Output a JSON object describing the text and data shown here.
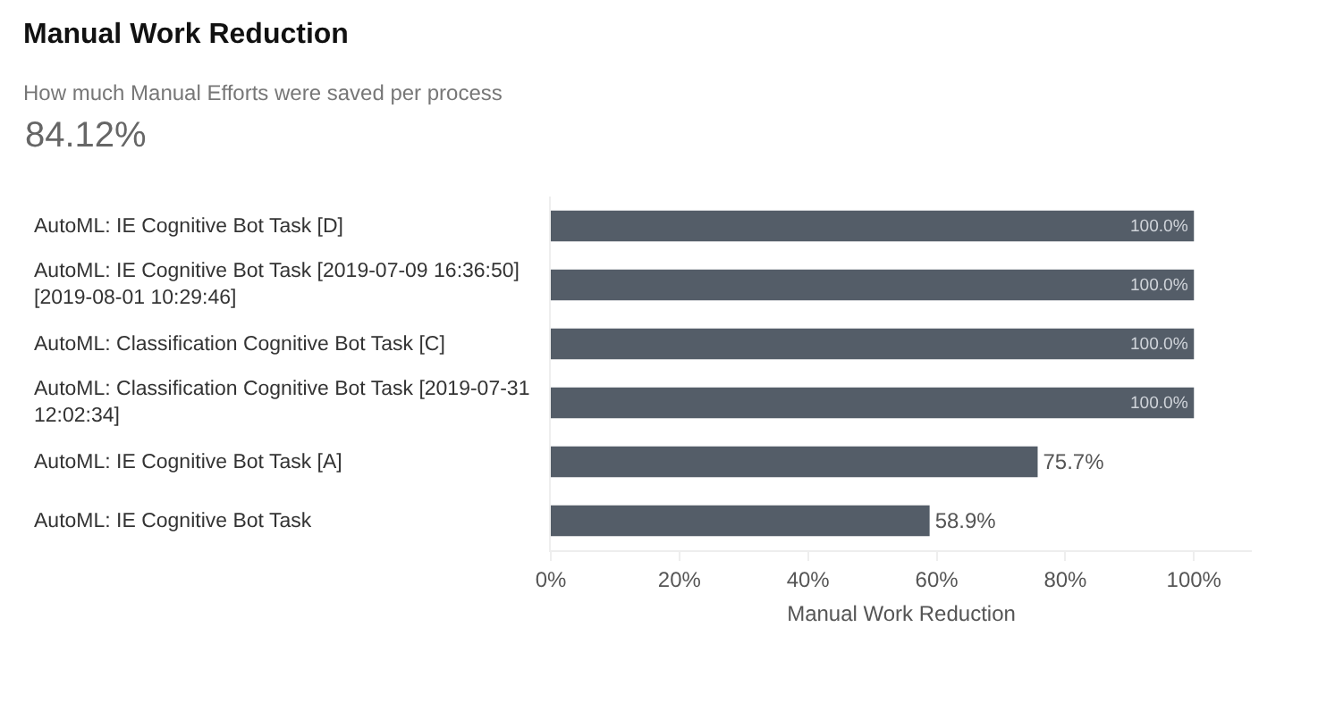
{
  "chart_data": {
    "type": "bar",
    "orientation": "horizontal",
    "title": "Manual Work Reduction",
    "subtitle": "How much Manual Efforts were saved per process",
    "annotations": [
      "84.12%"
    ],
    "xlabel": "Manual Work Reduction",
    "categories": [
      "AutoML: IE Cognitive Bot Task [D]",
      "AutoML: IE Cognitive Bot Task [2019-07-09 16:36:50] [2019-08-01 10:29:46]",
      "AutoML: Classification Cognitive Bot Task [C]",
      "AutoML: Classification Cognitive Bot Task [2019-07-31 12:02:34]",
      "AutoML: IE Cognitive Bot Task [A]",
      "AutoML: IE Cognitive Bot Task"
    ],
    "values": [
      100,
      100,
      100,
      100,
      75.7,
      58.9
    ],
    "value_labels": [
      "100.0%",
      "100.0%",
      "100.0%",
      "100.0%",
      "75.7%",
      "58.9%"
    ],
    "color": "#545d68",
    "xlim": [
      0,
      109
    ],
    "xticks": [
      {
        "value": 0,
        "label": "0%"
      },
      {
        "value": 20,
        "label": "20%"
      },
      {
        "value": 40,
        "label": "40%"
      },
      {
        "value": 60,
        "label": "60%"
      },
      {
        "value": 80,
        "label": "80%"
      },
      {
        "value": 100,
        "label": "100%"
      }
    ],
    "legend": false
  }
}
